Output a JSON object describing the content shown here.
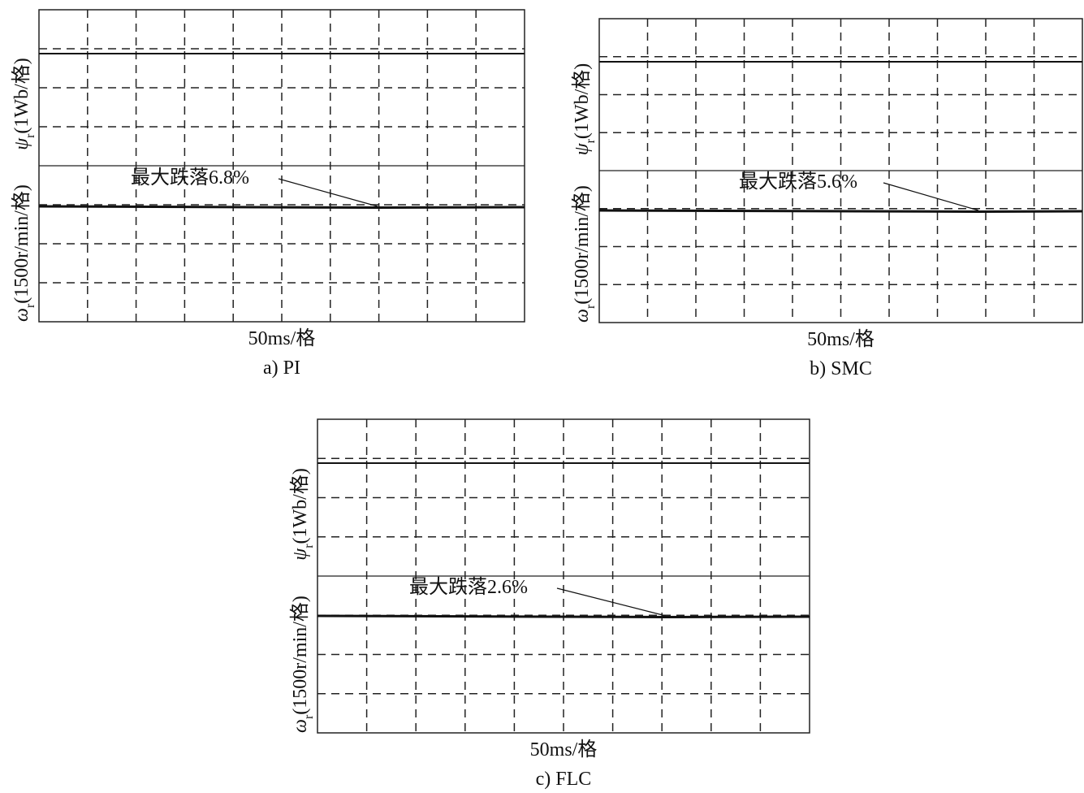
{
  "panels": [
    {
      "caption": "a) PI",
      "x_label": "50ms/格",
      "annotation": "最大跌落6.8%",
      "flux_label": {
        "symbol": "ψ",
        "sub": "r",
        "unit": "(1Wb/格)"
      },
      "speed_label": {
        "symbol": "ω",
        "sub": "r",
        "unit": "(1500r/min/格)"
      }
    },
    {
      "caption": "b) SMC",
      "x_label": "50ms/格",
      "annotation": "最大跌落5.6%",
      "flux_label": {
        "symbol": "ψ",
        "sub": "r",
        "unit": "(1Wb/格)"
      },
      "speed_label": {
        "symbol": "ω",
        "sub": "r",
        "unit": "(1500r/min/格)"
      }
    },
    {
      "caption": "c) FLC",
      "x_label": "50ms/格",
      "annotation": "最大跌落2.6%",
      "flux_label": {
        "symbol": "ψ",
        "sub": "r",
        "unit": "(1Wb/格)"
      },
      "speed_label": {
        "symbol": "ω",
        "sub": "r",
        "unit": "(1500r/min/格)"
      }
    }
  ]
}
